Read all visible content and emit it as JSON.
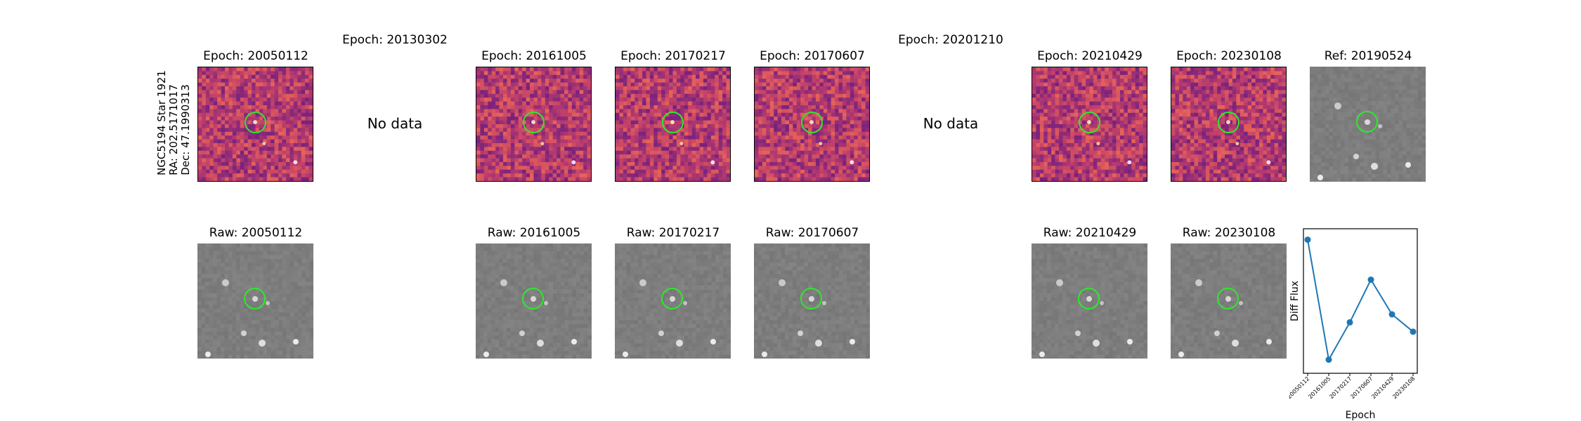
{
  "star_label": {
    "name": "NGC5194 Star 1921",
    "ra": "RA: 202.5171017",
    "dec": "Dec: 47.1990313"
  },
  "top_row": [
    {
      "title": "Epoch: 20050112",
      "has_data": true,
      "theme": "magma"
    },
    {
      "title": "Epoch: 20130302",
      "has_data": false,
      "no_data_text": "No data"
    },
    {
      "title": "Epoch: 20161005",
      "has_data": true,
      "theme": "magma"
    },
    {
      "title": "Epoch: 20170217",
      "has_data": true,
      "theme": "magma"
    },
    {
      "title": "Epoch: 20170607",
      "has_data": true,
      "theme": "magma"
    },
    {
      "title": "Epoch: 20201210",
      "has_data": false,
      "no_data_text": "No data"
    },
    {
      "title": "Epoch: 20210429",
      "has_data": true,
      "theme": "magma"
    },
    {
      "title": "Epoch: 20230108",
      "has_data": true,
      "theme": "magma"
    },
    {
      "title": "Ref: 20190524",
      "has_data": true,
      "theme": "gray"
    }
  ],
  "bottom_row": [
    {
      "title": "Raw: 20050112"
    },
    {
      "title": "Raw: 20161005"
    },
    {
      "title": "Raw: 20170217"
    },
    {
      "title": "Raw: 20170607"
    },
    {
      "title": "Raw: 20210429"
    },
    {
      "title": "Raw: 20230108"
    }
  ],
  "colors": {
    "aperture": "#2ee82e",
    "series": "#1f77b4",
    "magma_base": "#b5456e",
    "gray_base": "#8a8a8a"
  },
  "chart_data": {
    "type": "line",
    "categories": [
      "20050112",
      "20161005",
      "20170217",
      "20170607",
      "20210429",
      "20230108"
    ],
    "series": [
      {
        "name": "Diff Flux",
        "values": [
          0.96,
          0.06,
          0.34,
          0.66,
          0.4,
          0.27
        ]
      }
    ],
    "xlabel": "Epoch",
    "ylabel": "Diff Flux",
    "ylim": [
      0,
      1
    ],
    "y_tick_labels": false,
    "grid": false,
    "marker": "circle"
  }
}
